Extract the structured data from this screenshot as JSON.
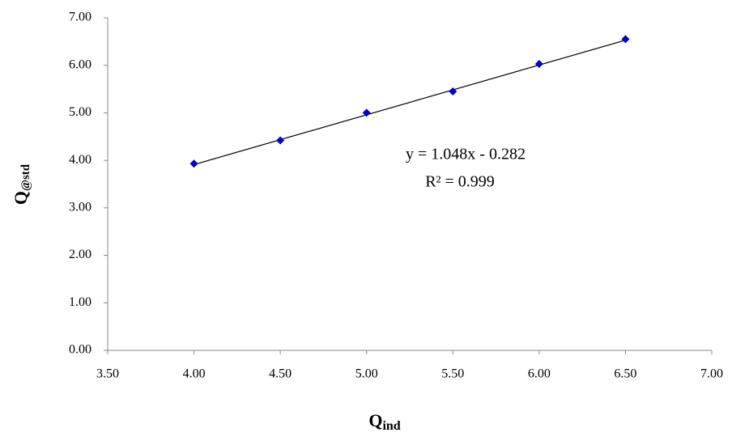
{
  "chart_data": {
    "type": "scatter",
    "xlabel": [
      "Q",
      "ind"
    ],
    "ylabel": [
      "Q",
      "@std"
    ],
    "x": [
      4.0,
      4.5,
      5.0,
      5.5,
      6.0,
      6.5
    ],
    "series": [
      {
        "color": "#0000cc",
        "values": [
          3.93,
          4.42,
          5.0,
          5.45,
          6.03,
          6.55
        ]
      }
    ],
    "trendline": {
      "equation": "y = 1.048x - 0.282",
      "r2_label": "R² = 0.999",
      "slope": 1.048,
      "intercept": -0.282,
      "r2": 0.999,
      "color": "#000000"
    },
    "xlim": [
      3.5,
      7.0
    ],
    "xticks": [
      {
        "value": 3.5,
        "label": "3.50"
      },
      {
        "value": 4.0,
        "label": "4.00"
      },
      {
        "value": 4.5,
        "label": "4.50"
      },
      {
        "value": 5.0,
        "label": "5.00"
      },
      {
        "value": 5.5,
        "label": "5.50"
      },
      {
        "value": 6.0,
        "label": "6.00"
      },
      {
        "value": 6.5,
        "label": "6.50"
      },
      {
        "value": 7.0,
        "label": "7.00"
      }
    ],
    "ylim": [
      0,
      7.0
    ],
    "yticks": [
      {
        "value": 0,
        "label": "0.00"
      },
      {
        "value": 1.0,
        "label": "1.00"
      },
      {
        "value": 2.0,
        "label": "2.00"
      },
      {
        "value": 3.0,
        "label": "3.00"
      },
      {
        "value": 4.0,
        "label": "4.00"
      },
      {
        "value": 5.0,
        "label": "5.00"
      },
      {
        "value": 6.0,
        "label": "6.00"
      },
      {
        "value": 7.0,
        "label": "7.00"
      }
    ],
    "grid": false
  }
}
